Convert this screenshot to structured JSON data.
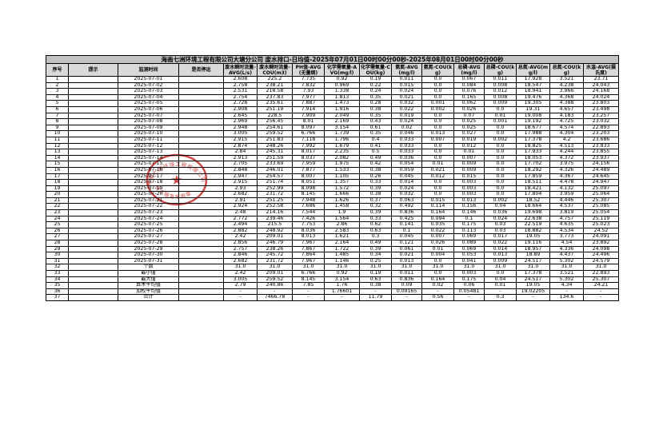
{
  "report": {
    "title": "海南七洲环境工程有限公司大塘分公司  废水排口-日均值-2025年07月01日00时00分00秒-2025年08月01日00时00分00秒",
    "columns": [
      "序号",
      "提示",
      "监测时间",
      "是否停运",
      "废水瞬时流量-AVG(L/s)",
      "废水瞬时流量-COU(m3)",
      "PH值-AVG(无量纲)",
      "化学需氧量-AVG(mg/l)",
      "化学需氧量-COU(kg)",
      "氨氮-AVG(mg/l)",
      "氨氮-COU(kg)",
      "总磷-AVG(mg/l)",
      "总磷-COU(kg)",
      "总氮-AVG(mg/l)",
      "总氮-COU(kg)",
      "水温-AVG(摄氏度)"
    ],
    "rows": [
      [
        "1",
        "",
        "2025-07-01",
        "",
        "2.608",
        "225.2",
        "7.735",
        "0.92",
        "0.19",
        "0.011",
        "0.0",
        "0.067",
        "0.011",
        "17.928",
        "3.521",
        "23.71"
      ],
      [
        "2",
        "",
        "2025-07-02",
        "",
        "2.758",
        "238.21",
        "7.832",
        "0.969",
        "0.22",
        "0.015",
        "0.0",
        "0.084",
        "0.008",
        "18.547",
        "4.238",
        "24.043"
      ],
      [
        "3",
        "",
        "2025-07-03",
        "",
        "2.531",
        "218.58",
        "7.93",
        "1.338",
        "0.24",
        "0.024",
        "0.0",
        "0.076",
        "0.012",
        "18.941",
        "3.966",
        "24.168"
      ],
      [
        "4",
        "",
        "2025-07-04",
        "",
        "2.754",
        "237.83",
        "7.977",
        "1.813",
        "0.35",
        "0.021",
        "0.0",
        "0.165",
        "0.008",
        "19.476",
        "4.368",
        "24.024"
      ],
      [
        "5",
        "",
        "2025-07-05",
        "",
        "2.728",
        "235.61",
        "7.887",
        "1.473",
        "0.28",
        "0.032",
        "0.001",
        "0.062",
        "0.009",
        "19.305",
        "4.388",
        "23.803"
      ],
      [
        "6",
        "",
        "2025-07-06",
        "",
        "2.908",
        "251.19",
        "7.914",
        "1.916",
        "0.38",
        "0.022",
        "0.002",
        "0.026",
        "0.0",
        "19.31",
        "4.657",
        "23.498"
      ],
      [
        "7",
        "",
        "2025-07-07",
        "",
        "2.645",
        "228.5",
        "7.909",
        "2.049",
        "0.35",
        "0.019",
        "0.0",
        "0.07",
        "0.01",
        "19.008",
        "4.183",
        "23.257"
      ],
      [
        "8",
        "",
        "2025-07-08",
        "",
        "2.969",
        "256.45",
        "8.01",
        "2.169",
        "0.43",
        "0.024",
        "0.0",
        "0.025",
        "0.001",
        "19.192",
        "4.725",
        "23.032"
      ],
      [
        "9",
        "",
        "2025-07-09",
        "",
        "2.948",
        "254.61",
        "8.097",
        "3.154",
        "0.61",
        "0.02",
        "0.0",
        "0.025",
        "0.0",
        "18.677",
        "4.574",
        "22.893"
      ],
      [
        "10",
        "",
        "2025-07-10",
        "",
        "3.005",
        "259.52",
        "6.766",
        "1.739",
        "0.35",
        "0.046",
        "0.013",
        "0.027",
        "0.0",
        "17.988",
        "4.304",
        "23.203"
      ],
      [
        "11",
        "",
        "2025-07-11",
        "",
        "2.915",
        "251.83",
        "7.118",
        "1.796",
        "0.4",
        "0.033",
        "0.007",
        "0.019",
        "0.002",
        "17.378",
        "4.2",
        "23.686"
      ],
      [
        "12",
        "",
        "2025-07-12",
        "",
        "2.874",
        "248.26",
        "7.992",
        "1.679",
        "0.41",
        "0.033",
        "0.0",
        "0.012",
        "0.0",
        "18.825",
        "4.513",
        "23.833"
      ],
      [
        "13",
        "",
        "2025-07-13",
        "",
        "2.84",
        "245.31",
        "8.017",
        "2.235",
        "0.5",
        "0.033",
        "0.0",
        "0.01",
        "0.0",
        "17.933",
        "4.244",
        "23.855"
      ],
      [
        "14",
        "",
        "2025-07-14",
        "",
        "2.913",
        "251.59",
        "8.037",
        "2.082",
        "0.49",
        "0.036",
        "0.0",
        "0.007",
        "0.0",
        "18.053",
        "4.372",
        "23.937"
      ],
      [
        "15",
        "",
        "2025-07-15",
        "",
        "2.705",
        "233.69",
        "7.959",
        "1.975",
        "0.42",
        "0.054",
        "0.01",
        "0.009",
        "0.0",
        "17.702",
        "3.975",
        "24.156"
      ],
      [
        "16",
        "",
        "2025-07-16",
        "",
        "2.848",
        "246.01",
        "7.877",
        "1.533",
        "0.38",
        "0.059",
        "0.021",
        "0.009",
        "0.0",
        "18.292",
        "4.326",
        "24.489"
      ],
      [
        "17",
        "",
        "2025-07-17",
        "",
        "2.947",
        "254.57",
        "8.007",
        "1.105",
        "0.26",
        "0.045",
        "0.012",
        "0.015",
        "0.0",
        "17.859",
        "4.367",
        "24.645"
      ],
      [
        "18",
        "",
        "2025-07-18",
        "",
        "2.915",
        "251.74",
        "8.051",
        "1.357",
        "0.33",
        "0.014",
        "0.0",
        "0.003",
        "0.0",
        "18.511",
        "4.478",
        "24.947"
      ],
      [
        "19",
        "",
        "2025-07-19",
        "",
        "2.93",
        "252.99",
        "8.098",
        "1.572",
        "0.39",
        "0.024",
        "0.0",
        "0.003",
        "0.0",
        "18.421",
        "4.132",
        "25.097"
      ],
      [
        "20",
        "",
        "2025-07-20",
        "",
        "2.682",
        "231.72",
        "8.145",
        "1.666",
        "0.38",
        "0.032",
        "0.0",
        "0.003",
        "0.0",
        "17.804",
        "3.959",
        "25.064"
      ],
      [
        "21",
        "",
        "2025-07-21",
        "",
        "2.91",
        "251.25",
        "7.948",
        "1.626",
        "0.37",
        "0.063",
        "0.015",
        "0.013",
        "0.002",
        "18.52",
        "4.446",
        "25.307"
      ],
      [
        "22",
        "",
        "2025-07-22",
        "",
        "2.924",
        "252.58",
        "7.686",
        "1.458",
        "0.32",
        "0.492",
        "0.114",
        "0.156",
        "0.04",
        "18.664",
        "4.537",
        "25.085"
      ],
      [
        "23",
        "",
        "2025-07-23",
        "",
        "2.48",
        "214.16",
        "7.544",
        "1.9",
        "0.39",
        "0.836",
        "0.164",
        "0.146",
        "0.036",
        "19.698",
        "3.819",
        "25.054"
      ],
      [
        "24",
        "",
        "2025-07-24",
        "",
        "2.772",
        "239.46",
        "7.426",
        "1.564",
        "0.33",
        "0.425",
        "0.094",
        "0.1",
        "0.024",
        "22.638",
        "4.757",
        "25.119"
      ],
      [
        "25",
        "",
        "2025-07-25",
        "",
        "2.494",
        "215.5",
        "7.753",
        "2.86",
        "0.62",
        "0.141",
        "0.035",
        "0.175",
        "0.03",
        "22.519",
        "4.635",
        "25.023"
      ],
      [
        "26",
        "",
        "2025-07-26",
        "",
        "2.882",
        "248.92",
        "8.036",
        "2.583",
        "0.63",
        "0.1",
        "0.022",
        "0.113",
        "0.03",
        "18.882",
        "4.534",
        "24.52"
      ],
      [
        "27",
        "",
        "2025-07-27",
        "",
        "2.42",
        "209.01",
        "8.013",
        "1.621",
        "0.3",
        "0.045",
        "0.007",
        "0.069",
        "0.017",
        "19.05",
        "3.773",
        "24.091"
      ],
      [
        "28",
        "",
        "2025-07-28",
        "",
        "2.856",
        "246.79",
        "7.967",
        "2.164",
        "0.49",
        "0.121",
        "0.026",
        "0.089",
        "0.022",
        "19.116",
        "4.54",
        "23.892"
      ],
      [
        "29",
        "",
        "2025-07-29",
        "",
        "2.757",
        "238.26",
        "7.867",
        "1.722",
        "0.39",
        "0.061",
        "0.01",
        "0.069",
        "0.014",
        "18.957",
        "4.336",
        "24.098"
      ],
      [
        "30",
        "",
        "2025-07-30",
        "",
        "2.846",
        "245.72",
        "7.864",
        "1.485",
        "0.34",
        "0.021",
        "0.004",
        "0.053",
        "0.013",
        "18.89",
        "4.437",
        "24.496"
      ],
      [
        "31",
        "",
        "2025-07-31",
        "",
        "2.682",
        "231.72",
        "7.967",
        "1.146",
        "0.25",
        "0.013",
        "0.0",
        "0.041",
        "0.009",
        "24.517",
        "5.302",
        "24.579"
      ],
      [
        "32",
        "",
        "个数",
        "",
        "31.0",
        "31.0",
        "31.0",
        "31.0",
        "31.0",
        "31.0",
        "31.0",
        "31.0",
        "31.0",
        "31.0",
        "31.0",
        "31.0"
      ],
      [
        "33",
        "",
        "最小值",
        "",
        "2.42",
        "209.01",
        "6.766",
        "0.92",
        "0.19",
        "0.011",
        "0.0",
        "0.003",
        "0.0",
        "17.378",
        "3.521",
        "22.893"
      ],
      [
        "34",
        "",
        "最大值",
        "",
        "3.005",
        "259.52",
        "8.145",
        "3.154",
        "0.63",
        "0.836",
        "0.164",
        "0.175",
        "0.04",
        "24.517",
        "5.302",
        "25.307"
      ],
      [
        "35",
        "",
        "算术平均值",
        "",
        "2.79",
        "240.86",
        "7.85",
        "1.76",
        "0.38",
        "0.09",
        "0.02",
        "0.06",
        "0.01",
        "19.05",
        "4.34",
        "24.21"
      ],
      [
        "36",
        "",
        "加权平均值",
        "",
        "-",
        "-",
        "-",
        "1.76601",
        "-",
        "0.09165",
        "-",
        "0.05481",
        "-",
        "19.02205",
        "-",
        "-"
      ],
      [
        "37",
        "",
        "合计",
        "",
        "-",
        "7466.78",
        "-",
        "-",
        "11.79",
        "-",
        "0.56",
        "-",
        "0.3",
        "-",
        "134.6",
        "-"
      ]
    ]
  },
  "stamp": {
    "top_text": "海南七洲环境工程有限公司",
    "star": "★",
    "bottom_text": "技术服务专用章",
    "color": "#c52a23"
  },
  "colors": {
    "title_bg": "#c3c3c3",
    "header_bg": "#d9d9d9",
    "border": "#000000",
    "page_bg": "#ffffff"
  }
}
